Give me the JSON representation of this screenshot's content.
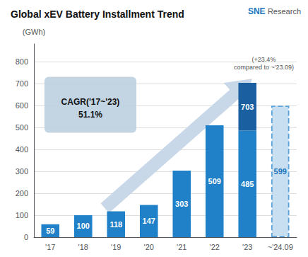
{
  "chart_data": {
    "type": "bar",
    "title": "Global xEV Battery Installment Trend",
    "ylabel": "(GWh)",
    "categories": [
      "'17",
      "'18",
      "'19",
      "'20",
      "'21",
      "'22",
      "'23",
      "~'24.09"
    ],
    "stacked": true,
    "data_labels": true,
    "grid": true,
    "ylim": [
      0,
      880
    ],
    "yticks": [
      0,
      100,
      200,
      300,
      400,
      500,
      600,
      700,
      800
    ],
    "series": [
      {
        "color": "#2080C8",
        "values": [
          59,
          100,
          118,
          147,
          303,
          509,
          485,
          null
        ]
      },
      {
        "color": "#1A60A0",
        "values": [
          null,
          null,
          null,
          null,
          null,
          null,
          218,
          null
        ],
        "totals": [
          null,
          null,
          null,
          null,
          null,
          null,
          703,
          null
        ]
      },
      {
        "color": "#C8DFF2",
        "edge_color": "#5BA3D9",
        "line_style": "dashed",
        "label_color": "#2075BB",
        "values": [
          null,
          null,
          null,
          null,
          null,
          null,
          null,
          599
        ]
      }
    ],
    "annotations": [
      {
        "text": "CAGR('17~'23)\n51.1%",
        "color": "#BDD0E0"
      },
      {
        "text": "(+23.4%\ncompared to ~'23.09)"
      },
      {
        "text": "SNE",
        "color": "#2075BB"
      },
      {
        "text": "Research"
      }
    ],
    "background_arrow": {
      "color": "#C8D8E8"
    }
  }
}
